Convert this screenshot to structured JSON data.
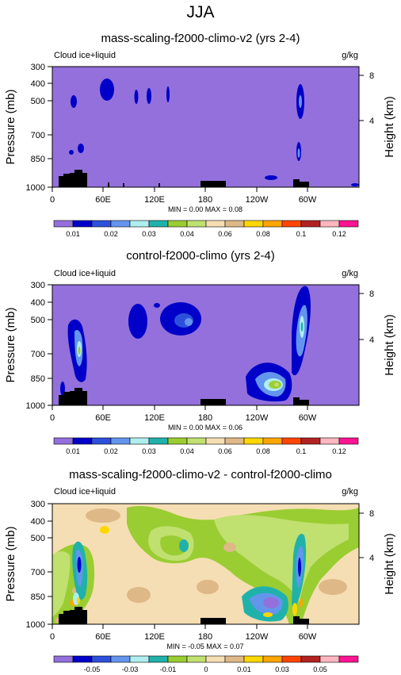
{
  "figure": {
    "title": "JJA"
  },
  "chart_data": [
    {
      "type": "heatmap",
      "title": "mass-scaling-f2000-climo-v2 (yrs 2-4)",
      "field_label": "Cloud ice+liquid",
      "units": "g/kg",
      "ylabel": "Pressure (mb)",
      "y2label": "Height (km)",
      "x_ticks": [
        "0",
        "60E",
        "120E",
        "180",
        "120W",
        "60W"
      ],
      "y_ticks": [
        "300",
        "400",
        "500",
        "700",
        "850",
        "1000"
      ],
      "y2_ticks": [
        "8",
        "4"
      ],
      "stats": "MIN =   0.00  MAX =   0.08",
      "background_level_color": "#9370db",
      "colorbar": {
        "colors": [
          "#9370db",
          "#0000c8",
          "#2d50dc",
          "#6495ed",
          "#afeeee",
          "#20b2aa",
          "#9acd32",
          "#c0e070",
          "#f5deb3",
          "#deb887",
          "#ffd700",
          "#ffa500",
          "#ff4500",
          "#b22222",
          "#ffb6c1",
          "#ff1493"
        ],
        "labels": [
          "0.01",
          "0.02",
          "0.03",
          "0.04",
          "0.06",
          "0.08",
          "0.1",
          "0.12"
        ]
      }
    },
    {
      "type": "heatmap",
      "title": "control-f2000-climo (yrs 2-4)",
      "field_label": "Cloud ice+liquid",
      "units": "g/kg",
      "ylabel": "Pressure (mb)",
      "y2label": "Height (km)",
      "x_ticks": [
        "0",
        "60E",
        "120E",
        "180",
        "120W",
        "60W"
      ],
      "y_ticks": [
        "300",
        "400",
        "500",
        "700",
        "850",
        "1000"
      ],
      "y2_ticks": [
        "8",
        "4"
      ],
      "stats": "MIN =   0.00  MAX =   0.06",
      "background_level_color": "#9370db",
      "colorbar": {
        "colors": [
          "#9370db",
          "#0000c8",
          "#2d50dc",
          "#6495ed",
          "#afeeee",
          "#20b2aa",
          "#9acd32",
          "#c0e070",
          "#f5deb3",
          "#deb887",
          "#ffd700",
          "#ffa500",
          "#ff4500",
          "#b22222",
          "#ffb6c1",
          "#ff1493"
        ],
        "labels": [
          "0.01",
          "0.02",
          "0.03",
          "0.04",
          "0.06",
          "0.08",
          "0.1",
          "0.12"
        ]
      }
    },
    {
      "type": "heatmap",
      "title": "mass-scaling-f2000-climo-v2 - control-f2000-climo",
      "field_label": "Cloud ice+liquid",
      "units": "g/kg",
      "ylabel": "Pressure (mb)",
      "y2label": "Height (km)",
      "x_ticks": [
        "0",
        "60E",
        "120E",
        "180",
        "120W",
        "60W"
      ],
      "y_ticks": [
        "300",
        "400",
        "500",
        "700",
        "850",
        "1000"
      ],
      "y2_ticks": [
        "8",
        "4"
      ],
      "stats": "MIN =  -0.05  MAX =   0.07",
      "background_level_color": "#f5deb3",
      "colorbar": {
        "colors": [
          "#9370db",
          "#0000c8",
          "#2d50dc",
          "#6495ed",
          "#afeeee",
          "#20b2aa",
          "#9acd32",
          "#c0e070",
          "#f5deb3",
          "#deb887",
          "#ffd700",
          "#ffa500",
          "#ff4500",
          "#b22222",
          "#ffb6c1",
          "#ff1493"
        ],
        "labels": [
          "-0.05",
          "-0.03",
          "-0.01",
          "0",
          "0.01",
          "0.03",
          "0.05"
        ]
      }
    }
  ]
}
